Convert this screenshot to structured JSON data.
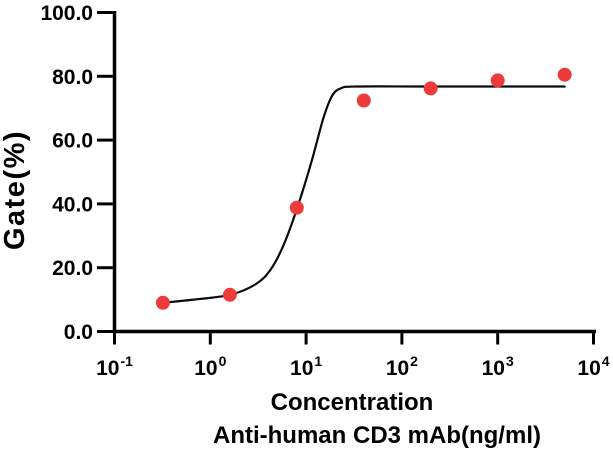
{
  "figure": {
    "background": "#ffffff",
    "axis_color": "#000000",
    "curve_color": "#0a0a0a",
    "point_color": "#ed3b3c",
    "x_axis": {
      "title_line1": "Concentration",
      "title_line2": "Anti-human CD3 mAb(ng/ml)",
      "tick_base": "10",
      "tick_exponents": [
        "-1",
        "0",
        "1",
        "2",
        "3",
        "4"
      ]
    },
    "y_axis": {
      "title": "Gate(%)",
      "tick_values": [
        0,
        20,
        40,
        60,
        80,
        100
      ],
      "tick_labels": [
        "0.0",
        "20.0",
        "40.0",
        "60.0",
        "80.0",
        "100.0"
      ]
    }
  },
  "chart_data": {
    "type": "scatter",
    "title": "",
    "xlabel": "Concentration Anti-human CD3 mAb(ng/ml)",
    "ylabel": "Gate(%)",
    "x_scale": "log10",
    "xlim": [
      0.1,
      10000
    ],
    "ylim": [
      0,
      100
    ],
    "grid": false,
    "legend": "none",
    "points": [
      {
        "x": 0.32,
        "y": 9.0
      },
      {
        "x": 1.6,
        "y": 11.5
      },
      {
        "x": 8,
        "y": 38.8
      },
      {
        "x": 40,
        "y": 72.4
      },
      {
        "x": 200,
        "y": 76.2
      },
      {
        "x": 1000,
        "y": 78.7
      },
      {
        "x": 5000,
        "y": 80.5
      }
    ],
    "fit_curve": {
      "model": "sigmoidal dose-response (4PL fit)",
      "baseline": 8.8,
      "plateau_top": 76.8,
      "ec50_approx": 9.5,
      "waypoints": [
        [
          0.32,
          9.0
        ],
        [
          0.63,
          9.9
        ],
        [
          1.6,
          11.5
        ],
        [
          3.0,
          14.9
        ],
        [
          4.3,
          19.6
        ],
        [
          5.9,
          27.5
        ],
        [
          8.1,
          38.8
        ],
        [
          11.3,
          52.9
        ],
        [
          15.1,
          66.7
        ],
        [
          18.7,
          73.9
        ],
        [
          23.3,
          76.3
        ],
        [
          33.5,
          76.8
        ],
        [
          157,
          76.8
        ],
        [
          1070,
          76.8
        ],
        [
          5000,
          76.8
        ]
      ]
    }
  }
}
